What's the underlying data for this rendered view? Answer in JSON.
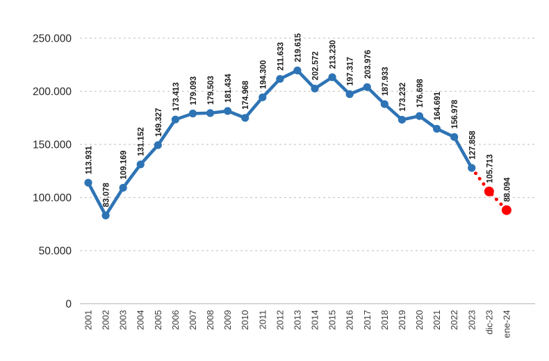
{
  "chart_data": {
    "type": "line",
    "title": "",
    "xlabel": "",
    "ylabel": "",
    "legend": "none",
    "grid": true,
    "categories": [
      "2001",
      "2002",
      "2003",
      "2004",
      "2005",
      "2006",
      "2007",
      "2008",
      "2009",
      "2010",
      "2011",
      "2012",
      "2013",
      "2014",
      "2015",
      "2016",
      "2017",
      "2018",
      "2019",
      "2020",
      "2021",
      "2022",
      "2023",
      "dic-23",
      "ene-24"
    ],
    "values": [
      113931,
      83078,
      109169,
      131152,
      149327,
      173413,
      179093,
      179503,
      181434,
      174968,
      194300,
      211633,
      219615,
      202572,
      213230,
      197317,
      203976,
      187933,
      173232,
      176698,
      164691,
      156978,
      127858,
      105713,
      88094
    ],
    "data_labels": [
      "113.931",
      "83.078",
      "109.169",
      "131.152",
      "149.327",
      "173.413",
      "179.093",
      "179.503",
      "181.434",
      "174.968",
      "194.300",
      "211.633",
      "219.615",
      "202.572",
      "213.230",
      "197.317",
      "203.976",
      "187.933",
      "173.232",
      "176.698",
      "164.691",
      "156.978",
      "127.858",
      "105.713",
      "88.094"
    ],
    "series_split": {
      "main_last_index": 22,
      "main_style": "solid",
      "forecast_style": "dotted",
      "forecast_indices": [
        23,
        24
      ]
    },
    "y_axis": {
      "min": 0,
      "max": 250000,
      "tick_step": 50000,
      "tick_labels": [
        "0",
        "50.000",
        "100.000",
        "150.000",
        "200.000",
        "250.000"
      ]
    },
    "colors": {
      "main_series": "#2E74B5",
      "forecast_series": "#FE0000",
      "gridline": "#C9C9C9",
      "axis_line": "#C0C0C0",
      "data_label_text": "#1A1A1A",
      "tick_text": "#3B3B3B",
      "background": "#FFFFFF"
    }
  }
}
